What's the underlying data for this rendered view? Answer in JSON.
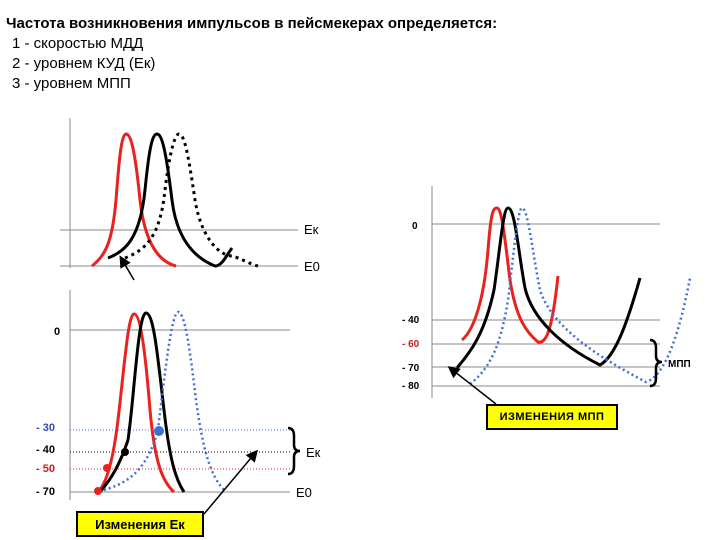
{
  "heading": {
    "title": "Частота возникновения импульсов в пейсмекерах определяется:",
    "items": [
      "1 - скоростью МДД",
      "2 - уровнем КУД (Ек)",
      "3 - уровнем МПП"
    ]
  },
  "panel_top_left": {
    "level_ek": "Ек",
    "level_e0": "Е0"
  },
  "panel_bottom_left": {
    "zero": "0",
    "tick_minus30": "- 30",
    "tick_minus40": "- 40",
    "tick_minus50": "- 50",
    "tick_minus70": "- 70",
    "level_ek": "Ек",
    "level_e0": "Е0",
    "box_label": "Изменения Ек"
  },
  "panel_right": {
    "zero": "0",
    "tick_minus40": "- 40",
    "tick_minus60": "- 60",
    "tick_minus70": "- 70",
    "tick_minus80": "- 80",
    "bracket_label": "МПП",
    "box_label": "ИЗМЕНЕНИЯ МПП"
  },
  "colors": {
    "red": "#e8231f",
    "black": "#000000",
    "blue": "#3d6fd8",
    "grid": "#888888",
    "box": "#ffff00",
    "tick_red": "#c81e1e",
    "tick_blue": "#2a4fb8"
  }
}
